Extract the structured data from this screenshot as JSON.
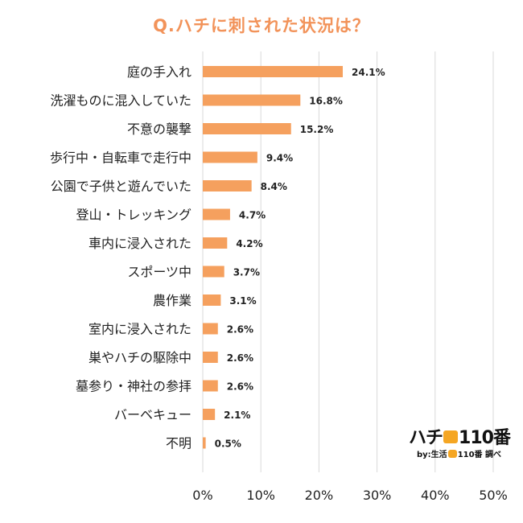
{
  "title": "Q.ハチに刺された状況は？",
  "chart_data": {
    "type": "bar",
    "orientation": "horizontal",
    "categories": [
      "庭の手入れ",
      "洗濯ものに混入していた",
      "不意の襲撃",
      "歩行中・自転車で走行中",
      "公園で子供と遊んでいた",
      "登山・トレッキング",
      "車内に浸入された",
      "スポーツ中",
      "農作業",
      "室内に浸入された",
      "巣やハチの駆除中",
      "墓参り・神社の参拝",
      "バーベキュー",
      "不明"
    ],
    "values": [
      24.1,
      16.8,
      15.2,
      9.4,
      8.4,
      4.7,
      4.2,
      3.7,
      3.1,
      2.6,
      2.6,
      2.6,
      2.1,
      0.5
    ],
    "value_labels": [
      "24.1%",
      "16.8%",
      "15.2%",
      "9.4%",
      "8.4%",
      "4.7%",
      "4.2%",
      "3.7%",
      "3.1%",
      "2.6%",
      "2.6%",
      "2.6%",
      "2.1%",
      "0.5%"
    ],
    "xlim": [
      0,
      50
    ],
    "xticks": [
      "0%",
      "10%",
      "20%",
      "30%",
      "40%",
      "50%"
    ],
    "grid": true,
    "bar_color": "#f5a05e",
    "grid_color": "#d9d9d9"
  },
  "logo": {
    "main_prefix": "ハチ",
    "main_suffix": "110番",
    "sub_prefix": "by:生活",
    "sub_suffix": "110番 調べ",
    "icon": "bee-icon"
  }
}
